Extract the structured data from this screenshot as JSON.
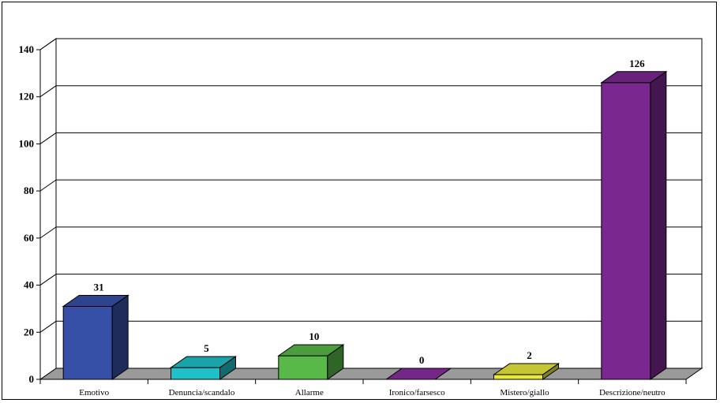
{
  "chart_data": {
    "type": "bar",
    "title": "",
    "xlabel": "",
    "ylabel": "",
    "categories": [
      "Emotivo",
      "Denuncia/scandalo",
      "Allarme",
      "Ironico/farsesco",
      "Mistero/giallo",
      "Descrizione/neutro"
    ],
    "values": [
      31,
      5,
      10,
      0,
      2,
      126
    ],
    "ylim": [
      0,
      140
    ],
    "yticks": [
      0,
      20,
      40,
      60,
      80,
      100,
      120,
      140
    ],
    "grid": true,
    "three_d": true,
    "legend": "none",
    "colors": [
      "#3650a8",
      "#20c0c8",
      "#58b848",
      "#8a2ea0",
      "#e8e840",
      "#7a2890"
    ],
    "floor_color": "#9a9a9a"
  }
}
